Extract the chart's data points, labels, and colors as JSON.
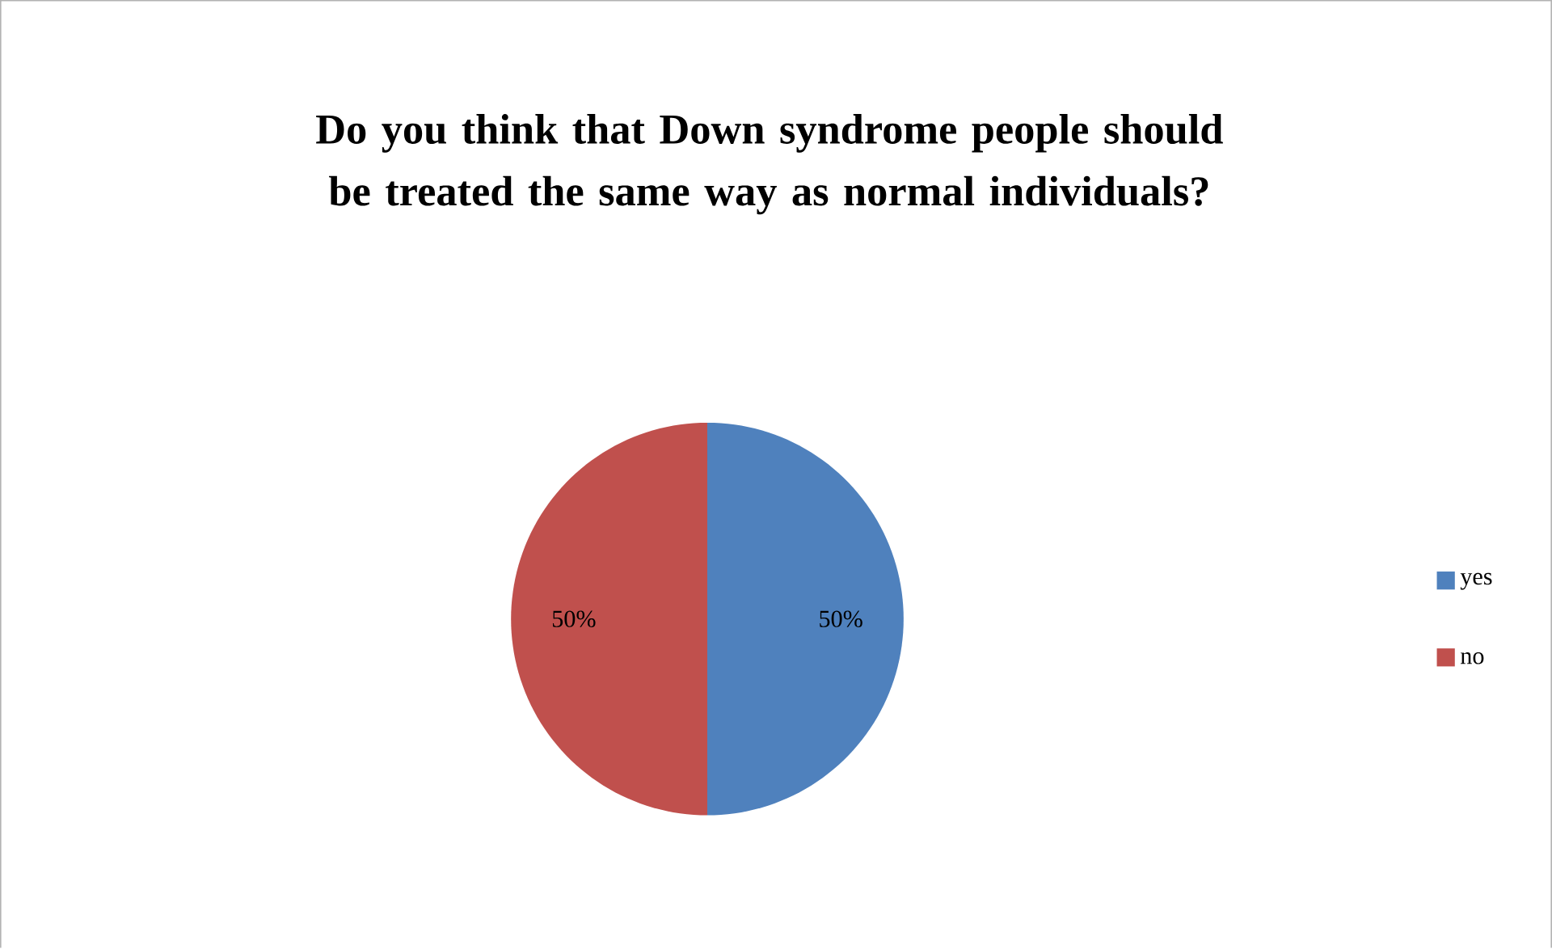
{
  "chart_data": {
    "type": "pie",
    "title": "Do you think that Down syndrome people should be treated the same way as normal individuals?",
    "categories": [
      "yes",
      "no"
    ],
    "values": [
      50,
      50
    ],
    "colors": [
      "#4f81bd",
      "#c0504d"
    ],
    "value_labels": [
      "50%",
      "50%"
    ],
    "legend": "right"
  }
}
